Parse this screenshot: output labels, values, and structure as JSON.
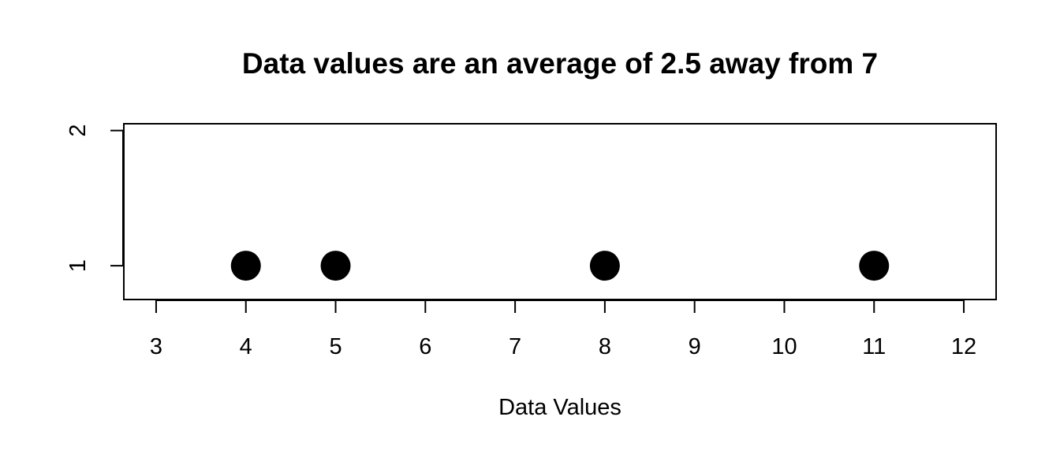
{
  "chart_data": {
    "type": "scatter",
    "title": "Data values are an average of 2.5 away from 7",
    "xlabel": "Data Values",
    "ylabel": "",
    "xlim": [
      2.64,
      12.36
    ],
    "ylim": [
      0.75,
      2.05
    ],
    "x_ticks": [
      "3",
      "4",
      "5",
      "6",
      "7",
      "8",
      "9",
      "10",
      "11",
      "12"
    ],
    "y_ticks": [
      "1",
      "2"
    ],
    "grid": false,
    "legend": "none",
    "point_color": "#000000",
    "series": [
      {
        "points": [
          {
            "x": 4,
            "y": 1
          },
          {
            "x": 5,
            "y": 1
          },
          {
            "x": 8,
            "y": 1
          },
          {
            "x": 11,
            "y": 1
          }
        ]
      }
    ]
  }
}
